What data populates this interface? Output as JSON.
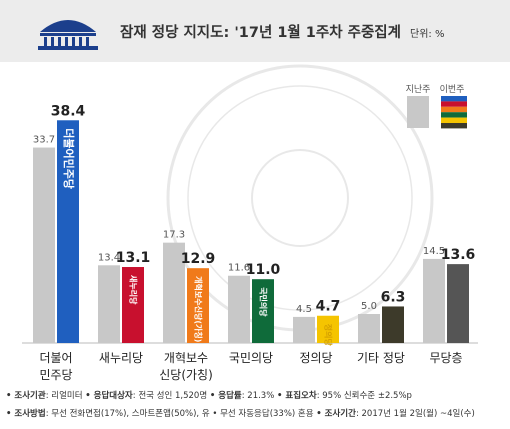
{
  "header": {
    "title": "잠재 정당 지지도: '17년 1월 1주차 주중집계",
    "unit": "단위: %"
  },
  "colors": {
    "previous_bar": "#c8c8c8",
    "title_text": "#333333",
    "header_band": "#e6e6e6"
  },
  "chart_data": {
    "type": "bar",
    "title": "잠재 정당 지지도: '17년 1월 1주차 주중집계",
    "unit": "단위: %",
    "legend": [
      "지난주",
      "이번주"
    ],
    "legend_position": "top-right",
    "categories": [
      "더불어 민주당",
      "새누리당",
      "개혁보수 신당(가칭)",
      "국민의당",
      "정의당",
      "기타 정당",
      "무당층"
    ],
    "category_lines": [
      [
        "더불어",
        "민주당"
      ],
      [
        "새누리당"
      ],
      [
        "개혁보수",
        "신당(가칭)"
      ],
      [
        "국민의당"
      ],
      [
        "정의당"
      ],
      [
        "기타 정당"
      ],
      [
        "무당층"
      ]
    ],
    "series": [
      {
        "name": "지난주",
        "values": [
          33.7,
          13.4,
          17.3,
          11.6,
          4.5,
          5.0,
          14.5
        ]
      },
      {
        "name": "이번주",
        "values": [
          38.4,
          13.1,
          12.9,
          11.0,
          4.7,
          6.3,
          13.6
        ]
      }
    ],
    "bar_colors_this_week": [
      "#1f5fbf",
      "#c8102e",
      "#f07a1a",
      "#0f6b3a",
      "#f5c400",
      "#3d3a2a",
      "#555555"
    ],
    "party_logos": [
      "더불어민주당",
      "새누리당",
      "개혁보수신당(가칭)",
      "국민의당",
      "정의당",
      "",
      ""
    ],
    "logo_text_colors": [
      "#ffffff",
      "#ffffff",
      "#ffffff",
      "#ffffff",
      "#d4a000",
      "",
      ""
    ],
    "ylim": [
      0,
      40
    ],
    "grid": false
  },
  "footer": {
    "line1": [
      {
        "key": "• 조사기관",
        "val": ": 리얼미터 "
      },
      {
        "key": "• 응답대상자",
        "val": ": 전국 성인 1,520명 "
      },
      {
        "key": "• 응답률",
        "val": ": 21.3% "
      },
      {
        "key": "• 표집오차",
        "val": ": 95% 신뢰수준 ±2.5%p"
      }
    ],
    "line2": [
      {
        "key": "• 조사방법",
        "val": ": 무선 전화면접(17%), 스마트폰앱(50%), 유 • 무선 자동응답(33%) 혼용 "
      },
      {
        "key": "• 조사기간",
        "val": ": 2017년 1월 2일(월) ~4일(수)"
      }
    ]
  }
}
